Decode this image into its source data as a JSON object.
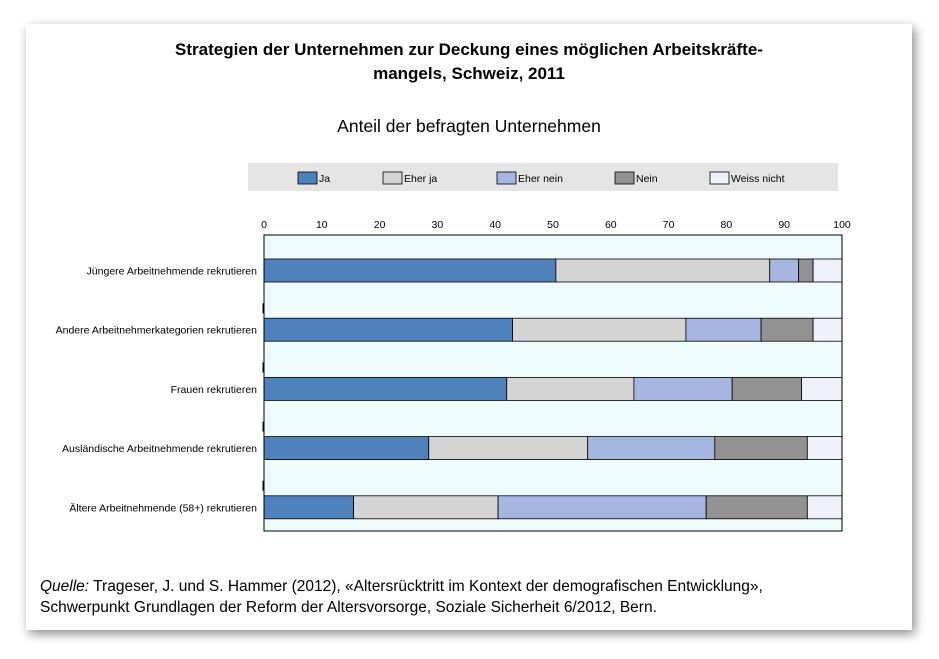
{
  "title_line1": "Strategien der Unternehmen zur Deckung eines möglichen Arbeitskräfte-",
  "title_line2": "mangels, Schweiz, 2011",
  "subtitle": "Anteil der befragten Unternehmen",
  "source": {
    "label": "Quelle:",
    "line1": " Trageser, J. und S. Hammer (2012), «Altersrücktritt im Kontext der demografischen Entwicklung»,",
    "line2": "Schwerpunkt Grundlagen der Reform der Altersvorsorge, Soziale Sicherheit 6/2012, Bern."
  },
  "chart_data": {
    "type": "bar",
    "orientation": "horizontal",
    "stacked": true,
    "title": "Strategien der Unternehmen zur Deckung eines möglichen Arbeitskräftemangels, Schweiz, 2011",
    "subtitle": "Anteil der befragten Unternehmen",
    "xlim": [
      0,
      100
    ],
    "xticks": [
      0,
      10,
      20,
      30,
      40,
      50,
      60,
      70,
      80,
      90,
      100
    ],
    "legend_position": "top",
    "grid": false,
    "categories": [
      "Jüngere Arbeitnehmende rekrutieren",
      "Andere Arbeitnehmerkategorien rekrutieren",
      "Frauen rekrutieren",
      "Ausländische Arbeitnehmende rekrutieren",
      "Ältere Arbeitnehmende (58+) rekrutieren"
    ],
    "series": [
      {
        "name": "Ja",
        "color": "#4f81bd",
        "values": [
          50.5,
          43,
          42,
          28.5,
          15.5
        ]
      },
      {
        "name": "Eher ja",
        "color": "#d4d4d4",
        "values": [
          37,
          30,
          22,
          27.5,
          25
        ]
      },
      {
        "name": "Eher nein",
        "color": "#a6b6e0",
        "values": [
          5,
          13,
          17,
          22,
          36
        ]
      },
      {
        "name": "Nein",
        "color": "#929292",
        "values": [
          2.5,
          9,
          12,
          16,
          17.5
        ]
      },
      {
        "name": "Weiss nicht",
        "color": "#eef1fa",
        "values": [
          5,
          5,
          7,
          6,
          6
        ]
      }
    ],
    "plot_background": "#eefcfd",
    "legend_background": "#e5e5e5"
  }
}
